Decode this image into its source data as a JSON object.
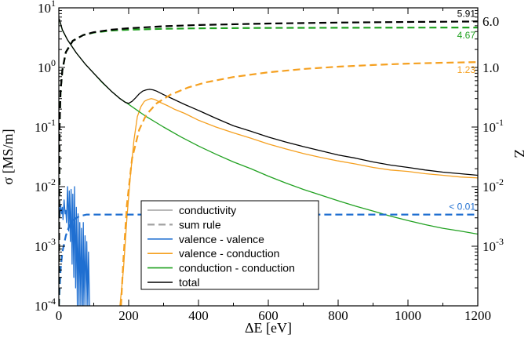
{
  "chart_data": {
    "type": "line",
    "title": "",
    "xlabel": "ΔE [eV]",
    "ylabel": "σ [MS/m]",
    "y2label": "Z",
    "xlim": [
      0,
      1200
    ],
    "ylim": [
      0.0001,
      10
    ],
    "y2lim": [
      0.0001,
      10
    ],
    "yscale": "log",
    "y2scale": "log",
    "grid": false,
    "x_ticks": [
      "0",
      "200",
      "400",
      "600",
      "800",
      "1000",
      "1200"
    ],
    "y_ticks": [
      {
        "base": "10",
        "exp": "-4"
      },
      {
        "base": "10",
        "exp": "-3"
      },
      {
        "base": "10",
        "exp": "-2"
      },
      {
        "base": "10",
        "exp": "-1"
      },
      {
        "base": "10",
        "exp": "0"
      },
      {
        "base": "10",
        "exp": "1"
      }
    ],
    "y2_ticks": [
      {
        "text": "",
        "base": "10",
        "exp": "-3",
        "value": 0.001
      },
      {
        "text": "",
        "base": "10",
        "exp": "-2",
        "value": 0.01
      },
      {
        "text": "",
        "base": "10",
        "exp": "-1",
        "value": 0.1
      },
      {
        "text": "1.0",
        "base": "",
        "exp": "",
        "value": 1
      },
      {
        "text": "6.0",
        "base": "",
        "exp": "",
        "value": 6
      }
    ],
    "colors": {
      "valence_valence": "#1f6fd1",
      "valence_conduction": "#f5a020",
      "conduction_conduction": "#21a121",
      "total": "#000000",
      "conductivity_legend": "#a0a0a0",
      "sum_rule_legend": "#a0a0a0"
    },
    "series": [
      {
        "name": "valence - valence",
        "kind": "conductivity",
        "color": "#1f6fd1",
        "x": [
          1,
          3,
          5,
          8,
          10,
          12,
          15,
          18,
          20,
          22,
          25,
          28,
          30,
          33,
          35,
          38,
          40,
          43,
          45,
          48,
          50,
          53,
          55,
          58,
          60,
          63,
          65,
          68,
          70,
          72,
          75,
          78,
          80,
          83,
          85,
          88,
          90
        ],
        "y": [
          0.0045,
          0.003,
          0.005,
          0.0035,
          0.0045,
          0.0028,
          0.006,
          0.0035,
          0.004,
          0.0025,
          0.01,
          0.0018,
          0.0085,
          0.0012,
          0.009,
          0.0005,
          0.0075,
          0.0003,
          0.01,
          0.0002,
          0.0045,
          0.0001,
          0.0035,
          0.0001,
          0.0025,
          0.0001,
          0.002,
          0.0001,
          0.0025,
          0.0001,
          0.0015,
          0.0001,
          0.0012,
          0.0001,
          0.0008,
          0.0001,
          0.0001
        ]
      },
      {
        "name": "valence - conduction",
        "kind": "conductivity",
        "color": "#f5a020",
        "x": [
          175,
          185,
          195,
          205,
          215,
          225,
          235,
          245,
          255,
          265,
          275,
          290,
          310,
          330,
          360,
          400,
          450,
          500,
          550,
          600,
          650,
          700,
          750,
          800,
          850,
          900,
          950,
          1000,
          1050,
          1100,
          1150,
          1200
        ],
        "y": [
          0.0001,
          0.0004,
          0.003,
          0.015,
          0.06,
          0.15,
          0.22,
          0.27,
          0.29,
          0.3,
          0.29,
          0.26,
          0.23,
          0.2,
          0.17,
          0.13,
          0.1,
          0.08,
          0.065,
          0.052,
          0.043,
          0.036,
          0.031,
          0.027,
          0.024,
          0.021,
          0.019,
          0.018,
          0.0165,
          0.0155,
          0.0145,
          0.014
        ]
      },
      {
        "name": "conduction - conduction",
        "kind": "conductivity",
        "color": "#21a121",
        "x": [
          1,
          10,
          25,
          50,
          75,
          100,
          125,
          150,
          175,
          200,
          225,
          250,
          300,
          350,
          400,
          450,
          500,
          550,
          600,
          650,
          700,
          750,
          800,
          850,
          900,
          950,
          1000,
          1050,
          1100,
          1150,
          1200
        ],
        "y": [
          6.5,
          4.2,
          2.9,
          1.75,
          1.15,
          0.8,
          0.55,
          0.4,
          0.3,
          0.24,
          0.19,
          0.15,
          0.1,
          0.068,
          0.048,
          0.035,
          0.026,
          0.02,
          0.015,
          0.0115,
          0.009,
          0.0072,
          0.0058,
          0.0047,
          0.0039,
          0.0032,
          0.0027,
          0.0023,
          0.002,
          0.0018,
          0.0016
        ]
      },
      {
        "name": "total",
        "kind": "conductivity",
        "color": "#000000",
        "x": [
          1,
          10,
          25,
          50,
          75,
          100,
          125,
          150,
          175,
          190,
          200,
          210,
          220,
          230,
          240,
          250,
          260,
          270,
          280,
          300,
          330,
          360,
          400,
          450,
          500,
          550,
          600,
          650,
          700,
          750,
          800,
          850,
          900,
          950,
          1000,
          1050,
          1100,
          1150,
          1200
        ],
        "y": [
          6.6,
          4.3,
          2.9,
          1.75,
          1.15,
          0.8,
          0.56,
          0.4,
          0.3,
          0.26,
          0.25,
          0.27,
          0.31,
          0.36,
          0.4,
          0.42,
          0.43,
          0.42,
          0.4,
          0.35,
          0.29,
          0.24,
          0.19,
          0.14,
          0.105,
          0.085,
          0.068,
          0.056,
          0.047,
          0.04,
          0.034,
          0.03,
          0.026,
          0.023,
          0.021,
          0.019,
          0.0175,
          0.0165,
          0.0155
        ]
      },
      {
        "name": "sum rule (valence - valence)",
        "kind": "sum_rule",
        "color": "#1f6fd1",
        "x": [
          0,
          5,
          10,
          20,
          30,
          40,
          50,
          60,
          70,
          80,
          90,
          100,
          200,
          400,
          600,
          800,
          1000,
          1200
        ],
        "y": [
          0.0001,
          0.0004,
          0.0008,
          0.0015,
          0.0022,
          0.0027,
          0.003,
          0.0032,
          0.0033,
          0.0034,
          0.0034,
          0.0034,
          0.0034,
          0.0034,
          0.0034,
          0.0034,
          0.0034,
          0.0034
        ]
      },
      {
        "name": "sum rule (valence - conduction)",
        "kind": "sum_rule",
        "color": "#f5a020",
        "x": [
          178,
          185,
          195,
          210,
          230,
          250,
          280,
          320,
          370,
          420,
          500,
          600,
          700,
          800,
          900,
          1000,
          1100,
          1200
        ],
        "y": [
          0.0001,
          0.0006,
          0.005,
          0.03,
          0.09,
          0.16,
          0.25,
          0.35,
          0.46,
          0.56,
          0.69,
          0.83,
          0.94,
          1.03,
          1.1,
          1.16,
          1.2,
          1.23
        ]
      },
      {
        "name": "sum rule (conduction - conduction)",
        "kind": "sum_rule",
        "color": "#21a121",
        "x": [
          0,
          2,
          5,
          10,
          20,
          40,
          70,
          100,
          150,
          200,
          300,
          400,
          600,
          800,
          1000,
          1200
        ],
        "y": [
          0.0001,
          0.1,
          0.4,
          0.9,
          1.8,
          2.8,
          3.5,
          3.85,
          4.15,
          4.3,
          4.45,
          4.53,
          4.6,
          4.63,
          4.66,
          4.67
        ]
      },
      {
        "name": "sum rule (total)",
        "kind": "sum_rule",
        "color": "#000000",
        "x": [
          0,
          2,
          5,
          10,
          20,
          40,
          70,
          100,
          150,
          200,
          300,
          400,
          600,
          800,
          1000,
          1200
        ],
        "y": [
          0.0001,
          0.1,
          0.4,
          0.9,
          1.8,
          2.8,
          3.5,
          3.9,
          4.3,
          4.55,
          4.9,
          5.15,
          5.45,
          5.65,
          5.8,
          5.91
        ]
      }
    ],
    "annotations": [
      {
        "text": "5.91",
        "color": "#000000",
        "y": 5.91
      },
      {
        "text": "4.67",
        "color": "#21a121",
        "y": 4.67
      },
      {
        "text": "1.23",
        "color": "#f5a020",
        "y": 1.23
      },
      {
        "text": "< 0.01",
        "color": "#1f6fd1",
        "y": 0.0034
      }
    ],
    "legend": {
      "placement": "bottom-center",
      "entries": [
        {
          "label": "conductivity",
          "color": "#a0a0a0",
          "style": "solid"
        },
        {
          "label": "sum rule",
          "color": "#a0a0a0",
          "style": "dashed"
        },
        {
          "label": "valence - valence",
          "color": "#1f6fd1",
          "style": "solid"
        },
        {
          "label": "valence - conduction",
          "color": "#f5a020",
          "style": "solid"
        },
        {
          "label": "conduction - conduction",
          "color": "#21a121",
          "style": "solid"
        },
        {
          "label": "total",
          "color": "#000000",
          "style": "solid"
        }
      ]
    }
  }
}
